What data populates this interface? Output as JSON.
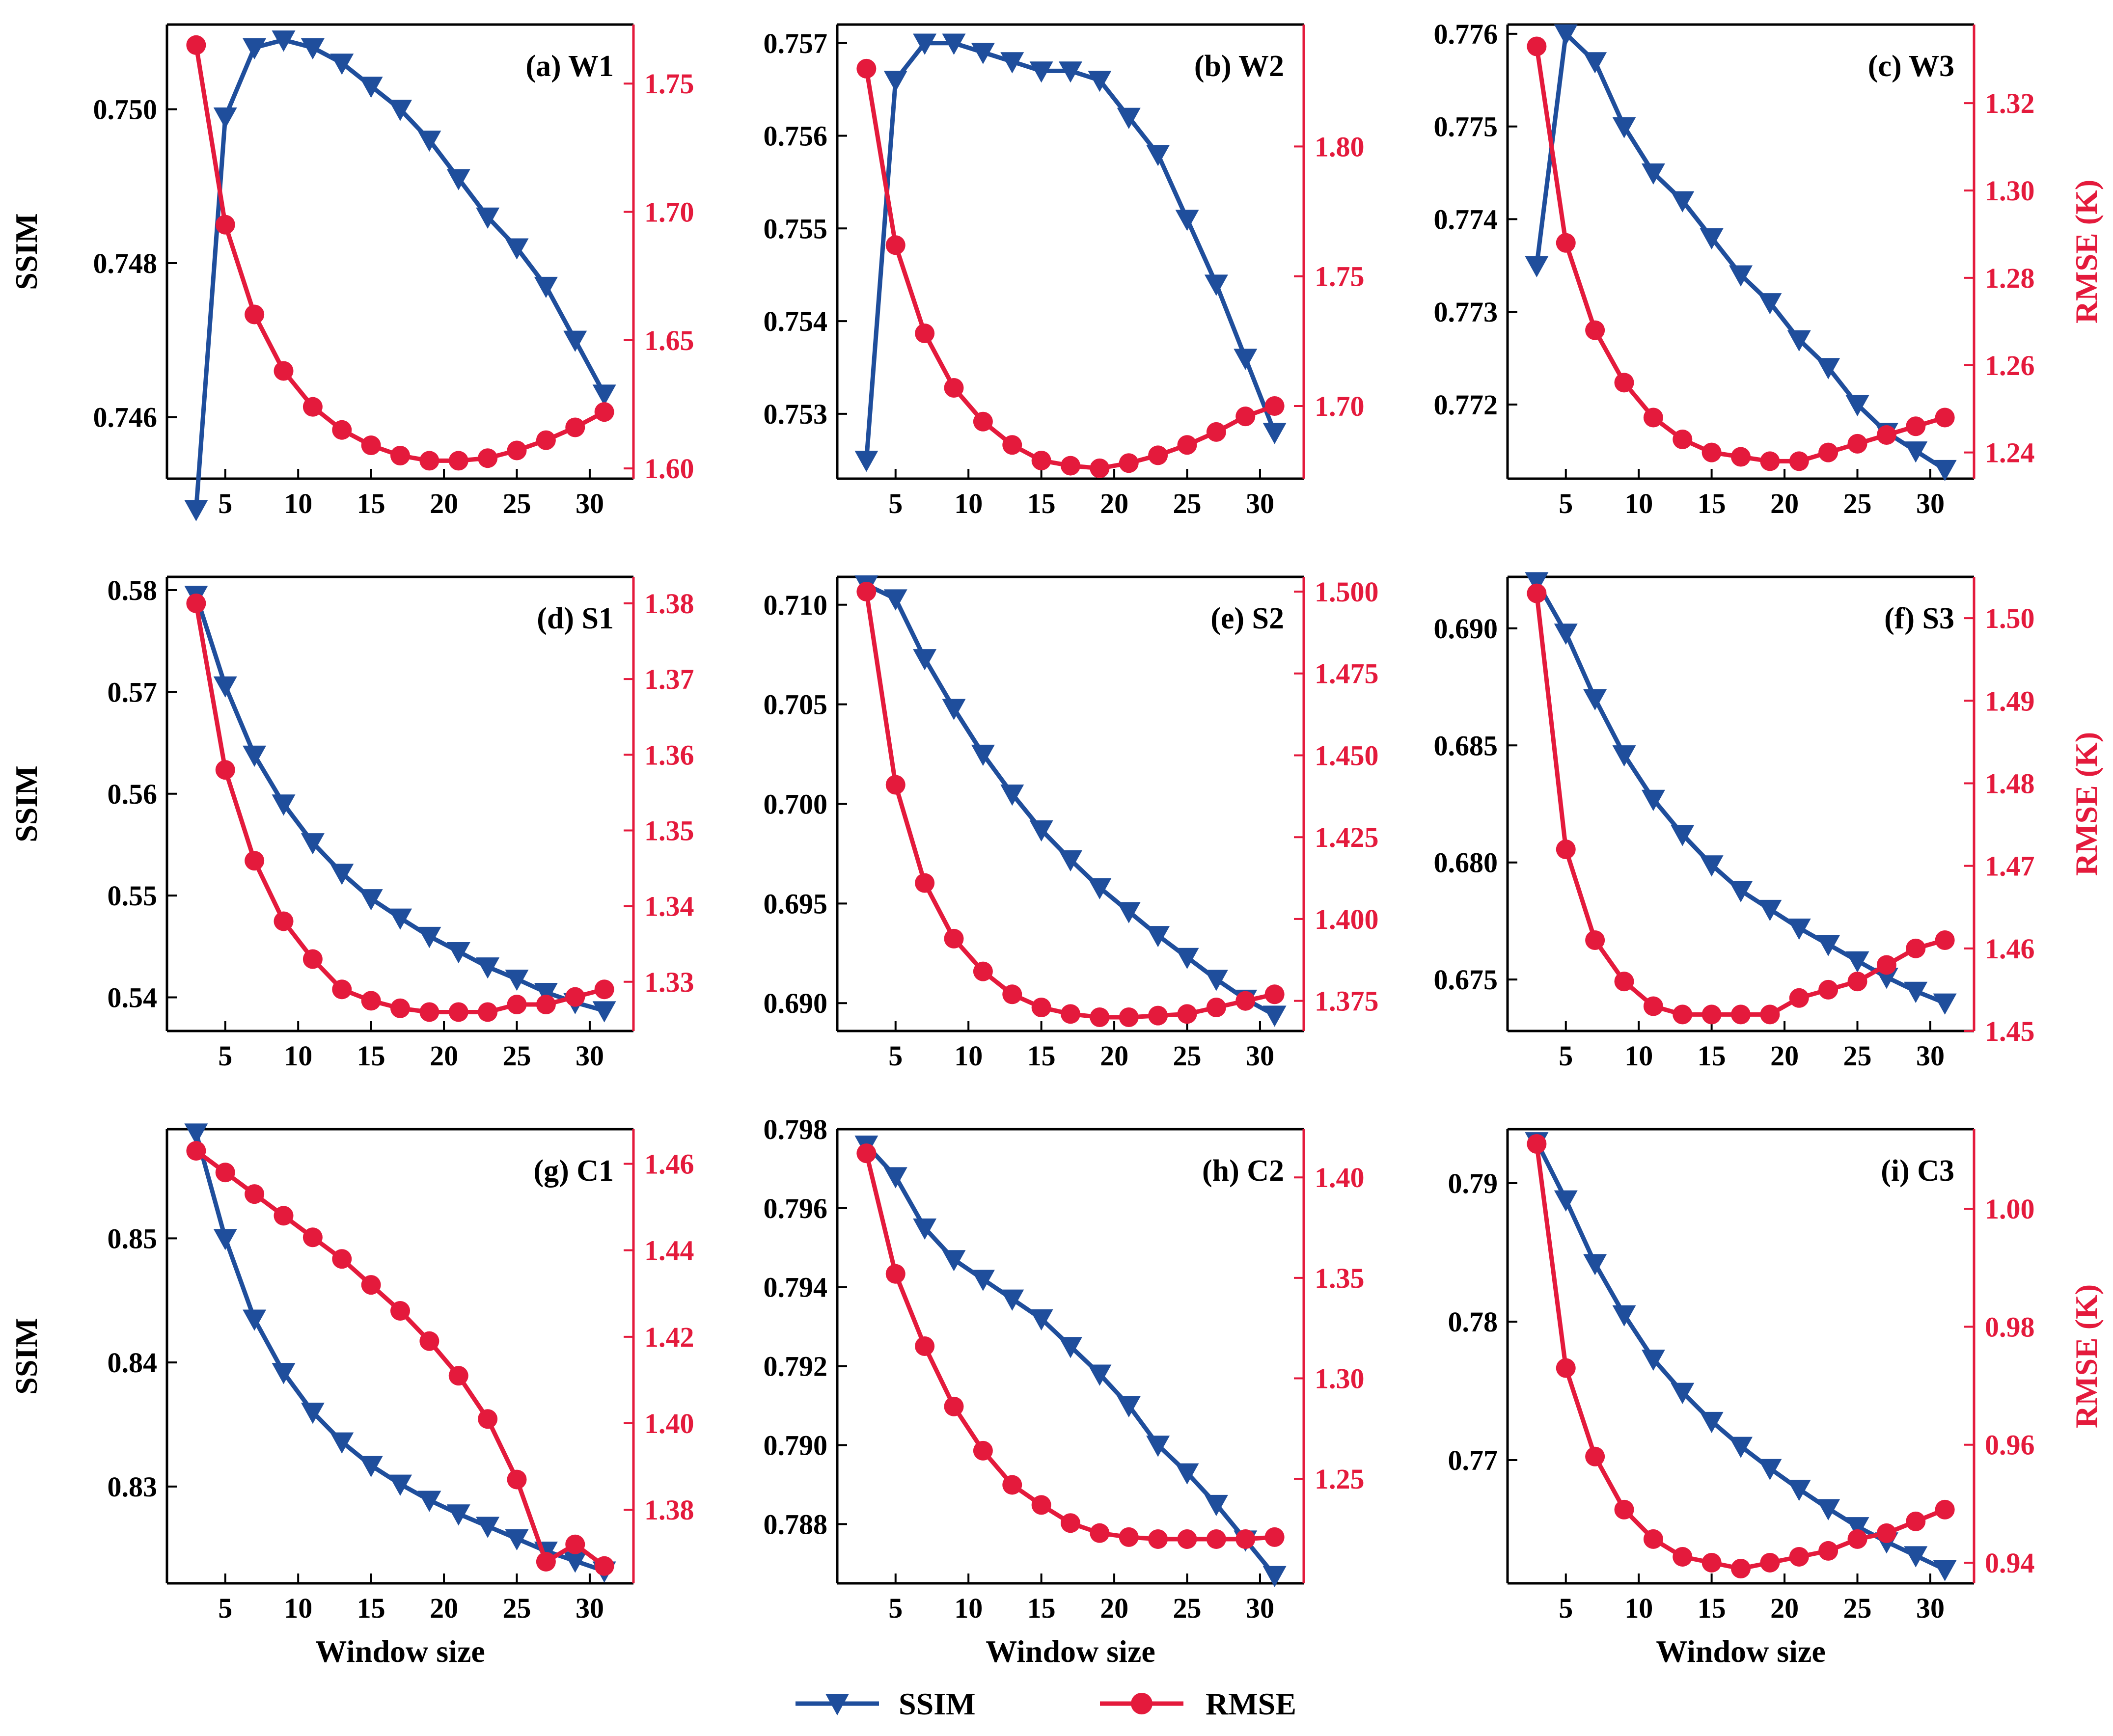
{
  "colors": {
    "ssim": "#1f4e9c",
    "rmse": "#e41a3c",
    "axis": "#000000"
  },
  "legend": {
    "ssim_label": "SSIM",
    "rmse_label": "RMSE",
    "placement": "bottom-center"
  },
  "chart_data": [
    {
      "type": "line",
      "title": "(a) W1",
      "xlabel": "",
      "ylabel": "SSIM",
      "y2label": "",
      "x": [
        3,
        5,
        7,
        9,
        11,
        13,
        15,
        17,
        19,
        21,
        23,
        25,
        27,
        29,
        31
      ],
      "xlim": [
        1,
        33
      ],
      "xticks": [
        5,
        10,
        15,
        20,
        25,
        30
      ],
      "xtick_labels": [
        "5",
        "10",
        "15",
        "20",
        "25",
        "30"
      ],
      "ylim": [
        0.7452,
        0.7511
      ],
      "yticks": [
        0.746,
        0.748,
        0.75
      ],
      "ytick_labels": [
        "0.746",
        "0.748",
        "0.750"
      ],
      "y2lim": [
        1.596,
        1.773
      ],
      "y2ticks": [
        1.6,
        1.65,
        1.7,
        1.75
      ],
      "y2tick_labels": [
        "1.60",
        "1.65",
        "1.70",
        "1.75"
      ],
      "series": [
        {
          "name": "SSIM",
          "axis": "left",
          "marker": "triangle-down",
          "values": [
            0.7448,
            0.7499,
            0.7508,
            0.7509,
            0.7508,
            0.7506,
            0.7503,
            0.75,
            0.7496,
            0.7491,
            0.7486,
            0.7482,
            0.7477,
            0.747,
            0.7463
          ]
        },
        {
          "name": "RMSE",
          "axis": "right",
          "marker": "circle",
          "values": [
            1.765,
            1.695,
            1.66,
            1.638,
            1.624,
            1.615,
            1.609,
            1.605,
            1.603,
            1.603,
            1.604,
            1.607,
            1.611,
            1.616,
            1.622
          ]
        }
      ]
    },
    {
      "type": "line",
      "title": "(b) W2",
      "xlabel": "",
      "ylabel": "",
      "y2label": "",
      "x": [
        3,
        5,
        7,
        9,
        11,
        13,
        15,
        17,
        19,
        21,
        23,
        25,
        27,
        29,
        31
      ],
      "xlim": [
        1,
        33
      ],
      "xticks": [
        5,
        10,
        15,
        20,
        25,
        30
      ],
      "xtick_labels": [
        "5",
        "10",
        "15",
        "20",
        "25",
        "30"
      ],
      "ylim": [
        0.7523,
        0.7572
      ],
      "yticks": [
        0.753,
        0.754,
        0.755,
        0.756,
        0.757
      ],
      "ytick_labels": [
        "0.753",
        "0.754",
        "0.755",
        "0.756",
        "0.757"
      ],
      "y2lim": [
        1.672,
        1.847
      ],
      "y2ticks": [
        1.7,
        1.75,
        1.8
      ],
      "y2tick_labels": [
        "1.70",
        "1.75",
        "1.80"
      ],
      "series": [
        {
          "name": "SSIM",
          "axis": "left",
          "marker": "triangle-down",
          "values": [
            0.7525,
            0.7566,
            0.757,
            0.757,
            0.7569,
            0.7568,
            0.7567,
            0.7567,
            0.7566,
            0.7562,
            0.7558,
            0.7551,
            0.7544,
            0.7536,
            0.7528
          ]
        },
        {
          "name": "RMSE",
          "axis": "right",
          "marker": "circle",
          "values": [
            1.83,
            1.762,
            1.728,
            1.707,
            1.694,
            1.685,
            1.679,
            1.677,
            1.676,
            1.678,
            1.681,
            1.685,
            1.69,
            1.696,
            1.7
          ]
        }
      ]
    },
    {
      "type": "line",
      "title": "(c) W3",
      "xlabel": "",
      "ylabel": "",
      "y2label": "RMSE (K)",
      "x": [
        3,
        5,
        7,
        9,
        11,
        13,
        15,
        17,
        19,
        21,
        23,
        25,
        27,
        29,
        31
      ],
      "xlim": [
        1,
        33
      ],
      "xticks": [
        5,
        10,
        15,
        20,
        25,
        30
      ],
      "xtick_labels": [
        "5",
        "10",
        "15",
        "20",
        "25",
        "30"
      ],
      "ylim": [
        0.7712,
        0.7761
      ],
      "yticks": [
        0.772,
        0.773,
        0.774,
        0.775,
        0.776
      ],
      "ytick_labels": [
        "0.772",
        "0.773",
        "0.774",
        "0.775",
        "0.776"
      ],
      "y2lim": [
        1.234,
        1.338
      ],
      "y2ticks": [
        1.24,
        1.26,
        1.28,
        1.3,
        1.32
      ],
      "y2tick_labels": [
        "1.24",
        "1.26",
        "1.28",
        "1.30",
        "1.32"
      ],
      "series": [
        {
          "name": "SSIM",
          "axis": "left",
          "marker": "triangle-down",
          "values": [
            0.7735,
            0.776,
            0.7757,
            0.775,
            0.7745,
            0.7742,
            0.7738,
            0.7734,
            0.7731,
            0.7727,
            0.7724,
            0.772,
            0.7717,
            0.7715,
            0.7713
          ]
        },
        {
          "name": "RMSE",
          "axis": "right",
          "marker": "circle",
          "values": [
            1.333,
            1.288,
            1.268,
            1.256,
            1.248,
            1.243,
            1.24,
            1.239,
            1.238,
            1.238,
            1.24,
            1.242,
            1.244,
            1.246,
            1.248
          ]
        }
      ]
    },
    {
      "type": "line",
      "title": "(d) S1",
      "xlabel": "",
      "ylabel": "SSIM",
      "y2label": "",
      "x": [
        3,
        5,
        7,
        9,
        11,
        13,
        15,
        17,
        19,
        21,
        23,
        25,
        27,
        29,
        31
      ],
      "xlim": [
        1,
        33
      ],
      "xticks": [
        5,
        10,
        15,
        20,
        25,
        30
      ],
      "xtick_labels": [
        "5",
        "10",
        "15",
        "20",
        "25",
        "30"
      ],
      "ylim": [
        0.5367,
        0.5813
      ],
      "yticks": [
        0.54,
        0.55,
        0.56,
        0.57,
        0.58
      ],
      "ytick_labels": [
        "0.54",
        "0.55",
        "0.56",
        "0.57",
        "0.58"
      ],
      "y2lim": [
        1.3235,
        1.3835
      ],
      "y2ticks": [
        1.33,
        1.34,
        1.35,
        1.36,
        1.37,
        1.38
      ],
      "y2tick_labels": [
        "1.33",
        "1.34",
        "1.35",
        "1.36",
        "1.37",
        "1.38"
      ],
      "series": [
        {
          "name": "SSIM",
          "axis": "left",
          "marker": "triangle-down",
          "values": [
            0.5795,
            0.5706,
            0.5638,
            0.559,
            0.5552,
            0.5522,
            0.5497,
            0.5478,
            0.546,
            0.5445,
            0.543,
            0.5418,
            0.5405,
            0.5395,
            0.5387
          ]
        },
        {
          "name": "RMSE",
          "axis": "right",
          "marker": "circle",
          "values": [
            1.38,
            1.358,
            1.346,
            1.338,
            1.333,
            1.329,
            1.3275,
            1.3265,
            1.326,
            1.326,
            1.326,
            1.327,
            1.327,
            1.328,
            1.329
          ]
        }
      ]
    },
    {
      "type": "line",
      "title": "(e) S2",
      "xlabel": "",
      "ylabel": "",
      "y2label": "",
      "x": [
        3,
        5,
        7,
        9,
        11,
        13,
        15,
        17,
        19,
        21,
        23,
        25,
        27,
        29,
        31
      ],
      "xlim": [
        1,
        33
      ],
      "xticks": [
        5,
        10,
        15,
        20,
        25,
        30
      ],
      "xtick_labels": [
        "5",
        "10",
        "15",
        "20",
        "25",
        "30"
      ],
      "ylim": [
        0.6886,
        0.7114
      ],
      "yticks": [
        0.69,
        0.695,
        0.7,
        0.705,
        0.71
      ],
      "ytick_labels": [
        "0.690",
        "0.695",
        "0.700",
        "0.705",
        "0.710"
      ],
      "y2lim": [
        1.3658,
        1.5045
      ],
      "y2ticks": [
        1.375,
        1.4,
        1.425,
        1.45,
        1.475,
        1.5
      ],
      "y2tick_labels": [
        "1.375",
        "1.400",
        "1.425",
        "1.450",
        "1.475",
        "1.500"
      ],
      "series": [
        {
          "name": "SSIM",
          "axis": "left",
          "marker": "triangle-down",
          "values": [
            0.711,
            0.7103,
            0.7073,
            0.7048,
            0.7025,
            0.7005,
            0.6987,
            0.6972,
            0.6958,
            0.6946,
            0.6934,
            0.6923,
            0.6912,
            0.6902,
            0.6894
          ]
        },
        {
          "name": "RMSE",
          "axis": "right",
          "marker": "circle",
          "values": [
            1.5,
            1.441,
            1.411,
            1.394,
            1.384,
            1.377,
            1.373,
            1.371,
            1.37,
            1.37,
            1.3705,
            1.371,
            1.373,
            1.375,
            1.377
          ]
        }
      ]
    },
    {
      "type": "line",
      "title": "(f) S3",
      "xlabel": "",
      "ylabel": "",
      "y2label": "RMSE (K)",
      "x": [
        3,
        5,
        7,
        9,
        11,
        13,
        15,
        17,
        19,
        21,
        23,
        25,
        27,
        29,
        31
      ],
      "xlim": [
        1,
        33
      ],
      "xticks": [
        5,
        10,
        15,
        20,
        25,
        30
      ],
      "xtick_labels": [
        "5",
        "10",
        "15",
        "20",
        "25",
        "30"
      ],
      "ylim": [
        0.6728,
        0.6922
      ],
      "yticks": [
        0.675,
        0.68,
        0.685,
        0.69
      ],
      "ytick_labels": [
        "0.675",
        "0.680",
        "0.685",
        "0.690"
      ],
      "y2lim": [
        1.45,
        1.505
      ],
      "y2ticks": [
        1.45,
        1.46,
        1.47,
        1.48,
        1.49,
        1.5
      ],
      "y2tick_labels": [
        "1.45",
        "1.46",
        "1.47",
        "1.48",
        "1.49",
        "1.50"
      ],
      "series": [
        {
          "name": "SSIM",
          "axis": "left",
          "marker": "triangle-down",
          "values": [
            0.692,
            0.6898,
            0.687,
            0.6846,
            0.6827,
            0.6812,
            0.6799,
            0.6788,
            0.678,
            0.6772,
            0.6765,
            0.6758,
            0.6751,
            0.6745,
            0.674
          ]
        },
        {
          "name": "RMSE",
          "axis": "right",
          "marker": "circle",
          "values": [
            1.503,
            1.472,
            1.461,
            1.456,
            1.453,
            1.452,
            1.452,
            1.452,
            1.452,
            1.454,
            1.455,
            1.456,
            1.458,
            1.46,
            1.461
          ]
        }
      ]
    },
    {
      "type": "line",
      "title": "(g) C1",
      "xlabel": "Window size",
      "ylabel": "SSIM",
      "y2label": "",
      "x": [
        3,
        5,
        7,
        9,
        11,
        13,
        15,
        17,
        19,
        21,
        23,
        25,
        27,
        29,
        31
      ],
      "xlim": [
        1,
        33
      ],
      "xticks": [
        5,
        10,
        15,
        20,
        25,
        30
      ],
      "xtick_labels": [
        "5",
        "10",
        "15",
        "20",
        "25",
        "30"
      ],
      "ylim": [
        0.8222,
        0.8588
      ],
      "yticks": [
        0.83,
        0.84,
        0.85
      ],
      "ytick_labels": [
        "0.83",
        "0.84",
        "0.85"
      ],
      "y2lim": [
        1.363,
        1.468
      ],
      "y2ticks": [
        1.38,
        1.4,
        1.42,
        1.44,
        1.46
      ],
      "y2tick_labels": [
        "1.38",
        "1.40",
        "1.42",
        "1.44",
        "1.46"
      ],
      "series": [
        {
          "name": "SSIM",
          "axis": "left",
          "marker": "triangle-down",
          "values": [
            0.8585,
            0.85,
            0.8435,
            0.8392,
            0.836,
            0.8336,
            0.8317,
            0.8302,
            0.8289,
            0.8278,
            0.8268,
            0.8258,
            0.8248,
            0.824,
            0.8232
          ]
        },
        {
          "name": "RMSE",
          "axis": "right",
          "marker": "circle",
          "values": [
            1.463,
            1.458,
            1.453,
            1.448,
            1.443,
            1.438,
            1.432,
            1.426,
            1.419,
            1.411,
            1.401,
            1.387,
            1.368,
            1.372,
            1.367
          ]
        }
      ]
    },
    {
      "type": "line",
      "title": "(h) C2",
      "xlabel": "Window size",
      "ylabel": "",
      "y2label": "",
      "x": [
        3,
        5,
        7,
        9,
        11,
        13,
        15,
        17,
        19,
        21,
        23,
        25,
        27,
        29,
        31
      ],
      "xlim": [
        1,
        33
      ],
      "xticks": [
        5,
        10,
        15,
        20,
        25,
        30
      ],
      "xtick_labels": [
        "5",
        "10",
        "15",
        "20",
        "25",
        "30"
      ],
      "ylim": [
        0.7865,
        0.798
      ],
      "yticks": [
        0.788,
        0.79,
        0.792,
        0.794,
        0.796,
        0.798
      ],
      "ytick_labels": [
        "0.788",
        "0.790",
        "0.792",
        "0.794",
        "0.796",
        "0.798"
      ],
      "y2lim": [
        1.198,
        1.424
      ],
      "y2ticks": [
        1.25,
        1.3,
        1.35,
        1.4
      ],
      "y2tick_labels": [
        "1.25",
        "1.30",
        "1.35",
        "1.40"
      ],
      "series": [
        {
          "name": "SSIM",
          "axis": "left",
          "marker": "triangle-down",
          "values": [
            0.7976,
            0.7968,
            0.7955,
            0.7947,
            0.7942,
            0.7937,
            0.7932,
            0.7925,
            0.7918,
            0.791,
            0.79,
            0.7893,
            0.7885,
            0.7876,
            0.7867
          ]
        },
        {
          "name": "RMSE",
          "axis": "right",
          "marker": "circle",
          "values": [
            1.412,
            1.352,
            1.316,
            1.286,
            1.264,
            1.247,
            1.237,
            1.228,
            1.223,
            1.221,
            1.22,
            1.22,
            1.22,
            1.22,
            1.221
          ]
        }
      ]
    },
    {
      "type": "line",
      "title": "(i) C3",
      "xlabel": "Window size",
      "ylabel": "",
      "y2label": "RMSE (K)",
      "x": [
        3,
        5,
        7,
        9,
        11,
        13,
        15,
        17,
        19,
        21,
        23,
        25,
        27,
        29,
        31
      ],
      "xlim": [
        1,
        33
      ],
      "xticks": [
        5,
        10,
        15,
        20,
        25,
        30
      ],
      "xtick_labels": [
        "5",
        "10",
        "15",
        "20",
        "25",
        "30"
      ],
      "ylim": [
        0.7611,
        0.7939
      ],
      "yticks": [
        0.77,
        0.78,
        0.79
      ],
      "ytick_labels": [
        "0.77",
        "0.78",
        "0.79"
      ],
      "y2lim": [
        0.9365,
        1.0135
      ],
      "y2ticks": [
        0.94,
        0.96,
        0.98,
        1.0
      ],
      "y2tick_labels": [
        "0.94",
        "0.96",
        "0.98",
        "1.00"
      ],
      "series": [
        {
          "name": "SSIM",
          "axis": "left",
          "marker": "triangle-down",
          "values": [
            0.793,
            0.7888,
            0.7842,
            0.7805,
            0.7773,
            0.7749,
            0.7728,
            0.771,
            0.7694,
            0.7679,
            0.7665,
            0.7652,
            0.7641,
            0.7631,
            0.7621
          ]
        },
        {
          "name": "RMSE",
          "axis": "right",
          "marker": "circle",
          "values": [
            1.011,
            0.973,
            0.958,
            0.949,
            0.944,
            0.941,
            0.94,
            0.939,
            0.94,
            0.941,
            0.942,
            0.944,
            0.945,
            0.947,
            0.949
          ]
        }
      ]
    }
  ]
}
